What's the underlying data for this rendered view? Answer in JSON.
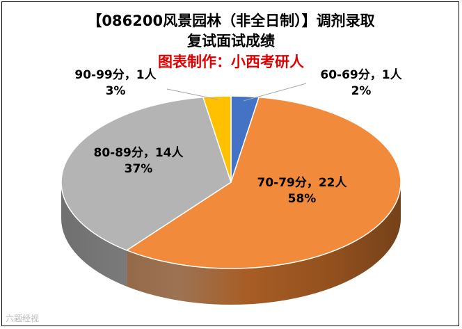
{
  "chart_data": {
    "type": "pie",
    "title": "【086200风景园林（非全日制）】调剂录取",
    "subtitle": "复试面试成绩",
    "credit": "图表制作：小西考研人",
    "slices": [
      {
        "label": "60-69分，1人",
        "value": 1,
        "percent": "2%",
        "color": "#4472c4"
      },
      {
        "label": "70-79分，22人",
        "value": 22,
        "percent": "58%",
        "color": "#f28a3c"
      },
      {
        "label": "80-89分，14人",
        "value": 14,
        "percent": "37%",
        "color": "#b4b4b4"
      },
      {
        "label": "90-99分，1人",
        "value": 1,
        "percent": "3%",
        "color": "#ffc000"
      }
    ],
    "legend": "none",
    "style": "3d-pie"
  },
  "watermark": "六题经视"
}
